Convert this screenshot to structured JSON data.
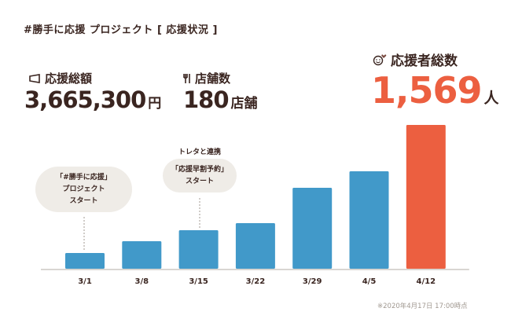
{
  "title": "#勝手に応援 プロジェクト [ 応援状況 ]",
  "stats": {
    "amount": {
      "label": "応援総額",
      "value": "3,665,300",
      "unit": "円",
      "icon": "megaphone-icon"
    },
    "stores": {
      "label": "店舗数",
      "value": "180",
      "unit": "店舗",
      "icon": "fork-knife-icon"
    },
    "supporters": {
      "label": "応援者総数",
      "value": "1,569",
      "unit": "人",
      "icon": "smiley-heart-icon"
    }
  },
  "annotations": {
    "start": {
      "lines": [
        "「#勝手に応援」",
        "プロジェクト",
        "スタート"
      ]
    },
    "toreta": {
      "caption": "トレタと連携",
      "lines": [
        "「応援早割予約」",
        "スタート"
      ]
    }
  },
  "note": "※2020年4月17日 17:00時点",
  "colors": {
    "bar": "#4199c9",
    "highlight": "#ec5f40",
    "text": "#3a2520",
    "bubble": "#efece7"
  },
  "chart_data": {
    "type": "bar",
    "title": "応援者総数",
    "categories": [
      "3/1",
      "3/8",
      "3/15",
      "3/22",
      "3/29",
      "4/5",
      "4/12"
    ],
    "values": [
      171,
      300,
      420,
      497,
      883,
      1063,
      1569
    ],
    "highlight_index": 6,
    "xlabel": "",
    "ylabel": "",
    "ylim": [
      0,
      1569
    ],
    "grid": false
  }
}
